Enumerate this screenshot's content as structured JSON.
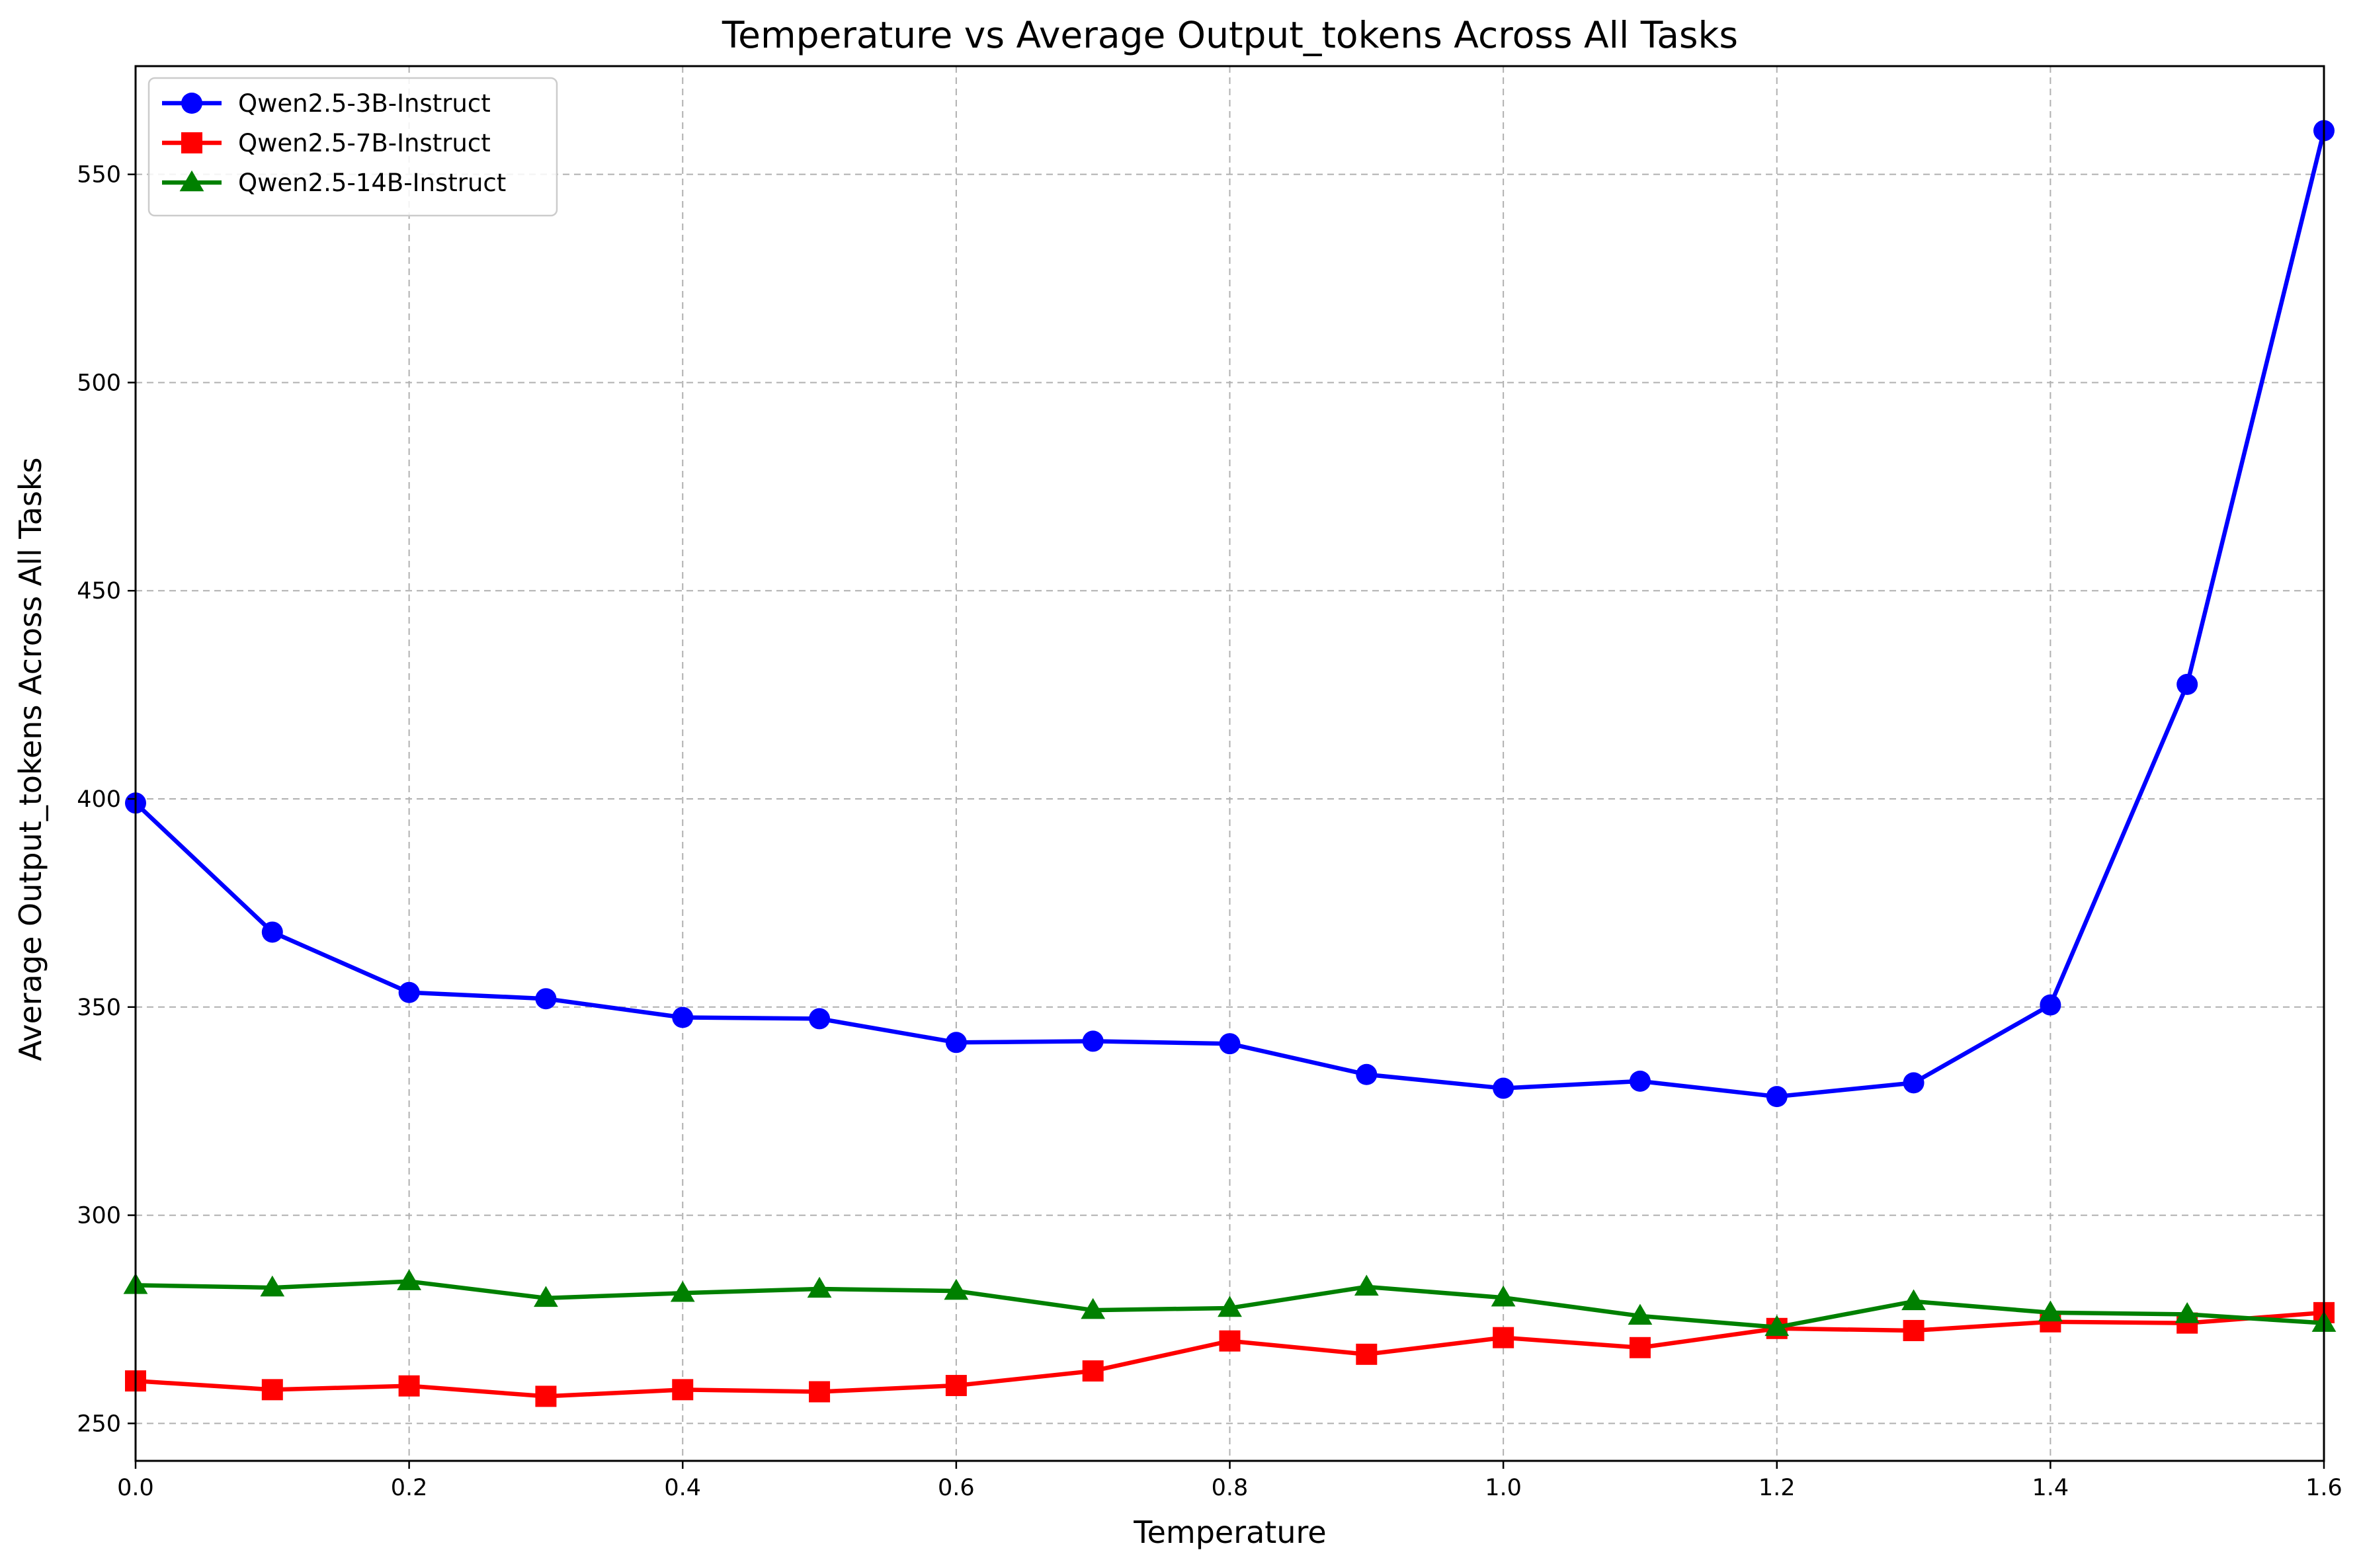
{
  "chart_data": {
    "type": "line",
    "title": "Temperature vs Average Output_tokens Across All Tasks",
    "xlabel": "Temperature",
    "ylabel": "Average Output_tokens Across All Tasks",
    "xlim": [
      0.0,
      1.6
    ],
    "ylim": [
      241,
      576
    ],
    "x_ticks": [
      0.0,
      0.2,
      0.4,
      0.6,
      0.8,
      1.0,
      1.2,
      1.4,
      1.6
    ],
    "x_tick_labels": [
      "0.0",
      "0.2",
      "0.4",
      "0.6",
      "0.8",
      "1.0",
      "1.2",
      "1.4",
      "1.6"
    ],
    "y_ticks": [
      250,
      300,
      350,
      400,
      450,
      500,
      550
    ],
    "y_tick_labels": [
      "250",
      "300",
      "350",
      "400",
      "450",
      "500",
      "550"
    ],
    "grid": true,
    "legend_position": "top-left",
    "x": [
      0.0,
      0.1,
      0.2,
      0.3,
      0.4,
      0.5,
      0.6,
      0.7,
      0.8,
      0.9,
      1.0,
      1.1,
      1.2,
      1.3,
      1.4,
      1.5,
      1.6
    ],
    "series": [
      {
        "name": "Qwen2.5-3B-Instruct",
        "color": "#0000ff",
        "marker": "circle",
        "values": [
          399,
          368,
          353.5,
          352,
          347.5,
          347.2,
          341.5,
          341.8,
          341.2,
          333.8,
          330.5,
          332.2,
          328.5,
          331.8,
          350.5,
          427.5,
          560.5
        ]
      },
      {
        "name": "Qwen2.5-7B-Instruct",
        "color": "#ff0000",
        "marker": "square",
        "values": [
          260.2,
          258.1,
          259,
          256.5,
          258.1,
          257.6,
          259.1,
          262.6,
          269.8,
          266.6,
          270.6,
          268.2,
          272.8,
          272.3,
          274.4,
          274.1,
          276.6
        ]
      },
      {
        "name": "Qwen2.5-14B-Instruct",
        "color": "#008000",
        "marker": "triangle",
        "values": [
          283.2,
          282.6,
          284.1,
          280.1,
          281.3,
          282.3,
          281.8,
          277.2,
          277.7,
          282.8,
          280.2,
          275.8,
          273.1,
          279.3,
          276.6,
          276.2,
          274.1
        ]
      }
    ]
  }
}
